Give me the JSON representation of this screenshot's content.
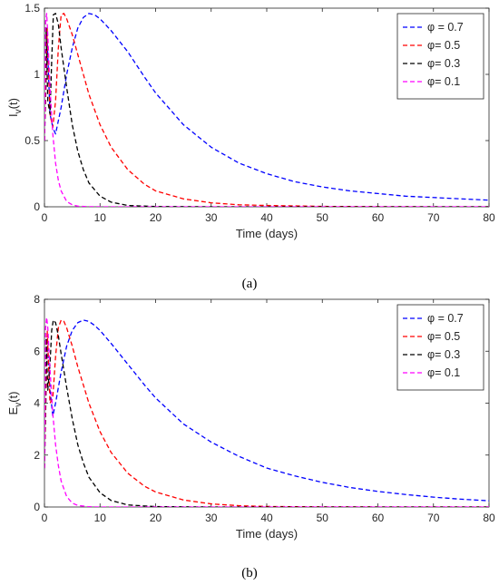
{
  "chart_data": [
    {
      "type": "line",
      "caption": "(a)",
      "xlabel": "Time (days)",
      "ylabel_main": "I",
      "ylabel_sub": "v",
      "ylabel_tail": "(t)",
      "xlim": [
        0,
        80
      ],
      "ylim": [
        0,
        1.5
      ],
      "xticks": [
        "0",
        "10",
        "20",
        "30",
        "40",
        "50",
        "60",
        "70",
        "80"
      ],
      "yticks": [
        "0",
        "0.5",
        "1",
        "1.5"
      ],
      "grid": false,
      "legend_position": "top-right",
      "series": [
        {
          "name": "φ = 0.7",
          "color": "#0000ff",
          "x": [
            0,
            0.5,
            1,
            1.5,
            2,
            3,
            4,
            5,
            6,
            7,
            8,
            9,
            10,
            12,
            15,
            18,
            20,
            25,
            30,
            35,
            40,
            45,
            50,
            55,
            60,
            65,
            70,
            75,
            80
          ],
          "y": [
            0.5,
            1.25,
            0.7,
            0.6,
            0.55,
            0.75,
            1.0,
            1.2,
            1.35,
            1.43,
            1.46,
            1.45,
            1.42,
            1.33,
            1.17,
            0.98,
            0.86,
            0.62,
            0.45,
            0.33,
            0.25,
            0.19,
            0.15,
            0.12,
            0.1,
            0.08,
            0.07,
            0.06,
            0.05
          ]
        },
        {
          "name": "φ= 0.5",
          "color": "#ff0000",
          "x": [
            0,
            0.5,
            1,
            1.5,
            2,
            2.5,
            3,
            3.5,
            4,
            5,
            6,
            7,
            8,
            10,
            12,
            15,
            18,
            20,
            25,
            30,
            35,
            40,
            50,
            60,
            70,
            80
          ],
          "y": [
            0.5,
            1.35,
            0.7,
            0.6,
            0.8,
            1.2,
            1.45,
            1.46,
            1.42,
            1.3,
            1.15,
            1.0,
            0.85,
            0.62,
            0.45,
            0.28,
            0.17,
            0.12,
            0.06,
            0.03,
            0.015,
            0.01,
            0.003,
            0.001,
            0,
            0
          ]
        },
        {
          "name": "φ= 0.3",
          "color": "#000000",
          "x": [
            0,
            0.3,
            0.6,
            1,
            1.3,
            1.6,
            2,
            2.5,
            3,
            4,
            5,
            6,
            7,
            8,
            10,
            12,
            15,
            20,
            30,
            40,
            60,
            80
          ],
          "y": [
            0.5,
            1.35,
            0.8,
            0.7,
            1.1,
            1.45,
            1.46,
            1.38,
            1.2,
            0.9,
            0.62,
            0.42,
            0.28,
            0.18,
            0.08,
            0.035,
            0.01,
            0.002,
            0,
            0,
            0,
            0
          ]
        },
        {
          "name": "φ= 0.1",
          "color": "#ff00ff",
          "x": [
            0,
            0.2,
            0.4,
            0.6,
            0.8,
            1,
            1.5,
            2,
            2.5,
            3,
            4,
            5,
            6,
            8,
            10,
            15,
            20,
            40,
            80
          ],
          "y": [
            0.5,
            1.4,
            1.46,
            1.3,
            1.1,
            0.9,
            0.55,
            0.33,
            0.2,
            0.12,
            0.04,
            0.015,
            0.005,
            0.001,
            0,
            0,
            0,
            0,
            0
          ]
        }
      ]
    },
    {
      "type": "line",
      "caption": "(b)",
      "xlabel": "Time (days)",
      "ylabel_main": "E",
      "ylabel_sub": "v",
      "ylabel_tail": "(t)",
      "xlim": [
        0,
        80
      ],
      "ylim": [
        0,
        8
      ],
      "xticks": [
        "0",
        "10",
        "20",
        "30",
        "40",
        "50",
        "60",
        "70",
        "80"
      ],
      "yticks": [
        "0",
        "2",
        "4",
        "6",
        "8"
      ],
      "grid": false,
      "legend_position": "top-right",
      "series": [
        {
          "name": "φ = 0.7",
          "color": "#0000ff",
          "x": [
            0,
            0.5,
            1,
            1.5,
            2,
            3,
            4,
            5,
            6,
            7,
            8,
            9,
            10,
            12,
            15,
            18,
            20,
            25,
            30,
            35,
            40,
            45,
            50,
            55,
            60,
            65,
            70,
            75,
            80
          ],
          "y": [
            1.5,
            6.5,
            4.5,
            3.5,
            4.0,
            5.2,
            6.2,
            6.8,
            7.1,
            7.2,
            7.15,
            7.0,
            6.8,
            6.3,
            5.5,
            4.7,
            4.2,
            3.2,
            2.5,
            1.95,
            1.5,
            1.2,
            0.95,
            0.75,
            0.6,
            0.48,
            0.38,
            0.3,
            0.24
          ]
        },
        {
          "name": "φ= 0.5",
          "color": "#ff0000",
          "x": [
            0,
            0.5,
            1,
            1.5,
            2,
            2.5,
            3,
            3.5,
            4,
            5,
            6,
            7,
            8,
            10,
            12,
            15,
            18,
            20,
            25,
            30,
            35,
            40,
            50,
            60,
            70,
            80
          ],
          "y": [
            1.5,
            6.8,
            4.0,
            4.2,
            5.8,
            6.9,
            7.2,
            7.15,
            6.9,
            6.2,
            5.4,
            4.7,
            4.0,
            2.9,
            2.1,
            1.3,
            0.8,
            0.58,
            0.27,
            0.12,
            0.05,
            0.02,
            0.005,
            0.001,
            0,
            0
          ]
        },
        {
          "name": "φ= 0.3",
          "color": "#000000",
          "x": [
            0,
            0.3,
            0.6,
            1,
            1.3,
            1.6,
            2,
            2.5,
            3,
            4,
            5,
            6,
            7,
            8,
            10,
            12,
            15,
            20,
            30,
            40,
            60,
            80
          ],
          "y": [
            1.5,
            6.5,
            4.5,
            5.5,
            6.8,
            7.2,
            7.1,
            6.6,
            5.9,
            4.6,
            3.4,
            2.4,
            1.7,
            1.15,
            0.55,
            0.25,
            0.08,
            0.015,
            0,
            0,
            0,
            0
          ]
        },
        {
          "name": "φ= 0.1",
          "color": "#ff00ff",
          "x": [
            0,
            0.2,
            0.4,
            0.6,
            0.8,
            1,
            1.5,
            2,
            2.5,
            3,
            4,
            5,
            6,
            8,
            10,
            15,
            20,
            40,
            80
          ],
          "y": [
            1.5,
            6.9,
            7.3,
            6.9,
            6.1,
            5.3,
            3.6,
            2.4,
            1.6,
            1.0,
            0.4,
            0.15,
            0.06,
            0.01,
            0,
            0,
            0,
            0,
            0
          ]
        }
      ]
    }
  ]
}
